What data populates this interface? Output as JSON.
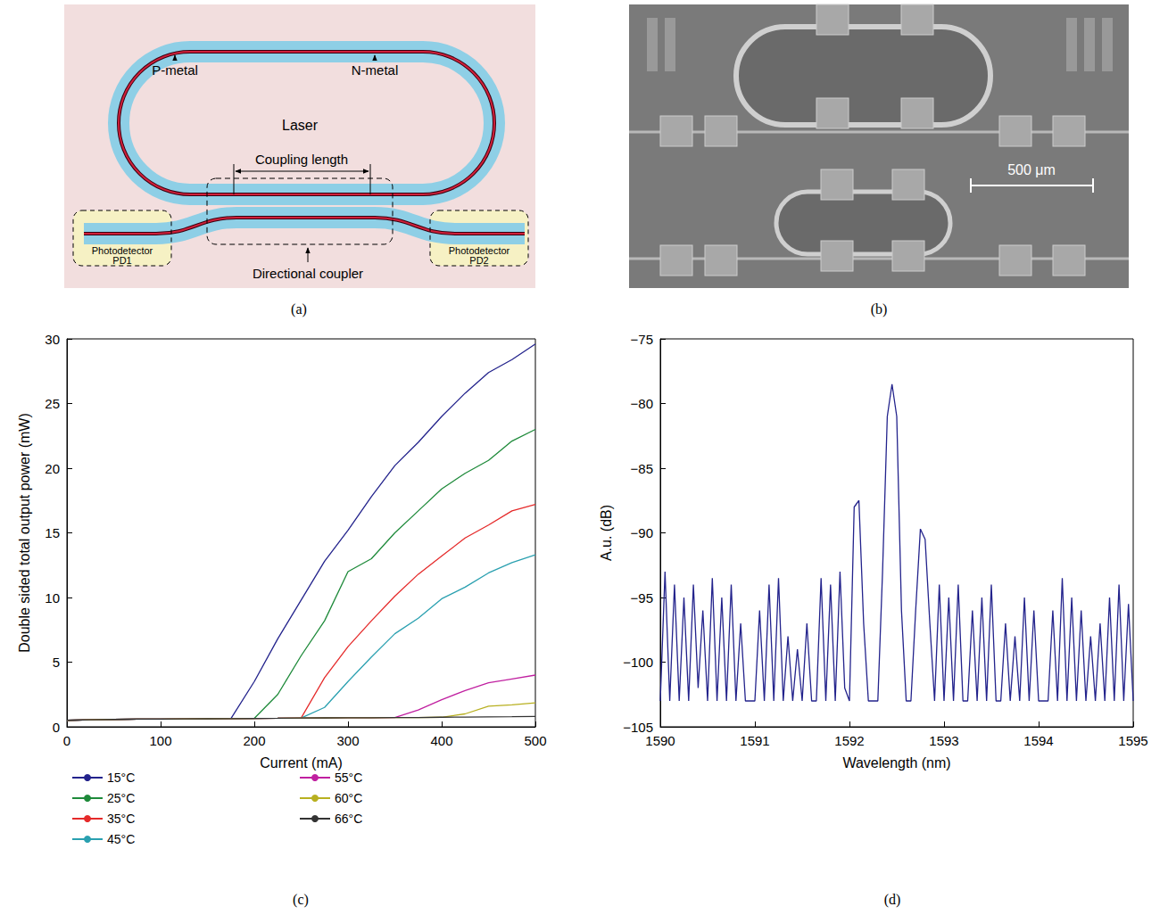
{
  "panels": [
    "(a)",
    "(b)",
    "(c)",
    "(d)"
  ],
  "diagram": {
    "p_metal": "P-metal",
    "n_metal": "N-metal",
    "laser": "Laser",
    "coupling_length": "Coupling length",
    "directional_coupler": "Directional coupler",
    "photodetectors": [
      [
        "Photodetector",
        "PD1"
      ],
      [
        "Photodetector",
        "PD2"
      ]
    ]
  },
  "image": {
    "scale_bar": "500 μm"
  },
  "chart_data": [
    {
      "type": "line",
      "xlabel": "Current (mA)",
      "ylabel": "Double sided total output power (mW)",
      "x": [
        0,
        25,
        50,
        75,
        100,
        125,
        150,
        175,
        200,
        225,
        250,
        275,
        300,
        325,
        350,
        375,
        400,
        425,
        450,
        475,
        500
      ],
      "xlim": [
        0,
        500
      ],
      "xticks": [
        0,
        100,
        200,
        300,
        400,
        500
      ],
      "ylim": [
        0,
        30
      ],
      "yticks": [
        0,
        5,
        10,
        15,
        20,
        25,
        30
      ],
      "grid": false,
      "legend": "bottom",
      "line_style": "solid",
      "series": [
        {
          "name": "15°C",
          "color": "#23238c",
          "values": [
            0.5,
            0.55,
            0.57,
            0.59,
            0.6,
            0.61,
            0.62,
            0.63,
            3.5,
            6.8,
            9.8,
            12.8,
            15.2,
            17.8,
            20.2,
            22,
            24,
            25.8,
            27.4,
            28.4,
            29.6
          ]
        },
        {
          "name": "25°C",
          "color": "#1e8a3a",
          "values": [
            0.5,
            0.55,
            0.57,
            0.59,
            0.6,
            0.61,
            0.62,
            0.63,
            0.65,
            2.5,
            5.5,
            8.2,
            12,
            13,
            15,
            16.7,
            18.4,
            19.6,
            20.6,
            22.1,
            23
          ]
        },
        {
          "name": "35°C",
          "color": "#e52a2a",
          "values": [
            0.5,
            0.55,
            0.57,
            0.59,
            0.6,
            0.61,
            0.62,
            0.63,
            0.65,
            0.66,
            0.68,
            3.8,
            6.2,
            8.2,
            10.1,
            11.8,
            13.2,
            14.6,
            15.6,
            16.7,
            17.2
          ]
        },
        {
          "name": "45°C",
          "color": "#2aa0b0",
          "values": [
            0.5,
            0.55,
            0.57,
            0.59,
            0.6,
            0.61,
            0.62,
            0.63,
            0.65,
            0.66,
            0.68,
            1.5,
            3.5,
            5.4,
            7.2,
            8.4,
            9.9,
            10.8,
            11.9,
            12.7,
            13.3
          ]
        },
        {
          "name": "55°C",
          "color": "#c020a0",
          "values": [
            0.5,
            0.55,
            0.57,
            0.59,
            0.6,
            0.61,
            0.62,
            0.63,
            0.65,
            0.66,
            0.68,
            0.69,
            0.7,
            0.7,
            0.71,
            1.3,
            2.1,
            2.8,
            3.4,
            3.7,
            4.0
          ]
        },
        {
          "name": "60°C",
          "color": "#b8b020",
          "values": [
            0.5,
            0.55,
            0.57,
            0.59,
            0.6,
            0.61,
            0.62,
            0.63,
            0.65,
            0.66,
            0.68,
            0.69,
            0.7,
            0.7,
            0.71,
            0.72,
            0.74,
            1.0,
            1.6,
            1.7,
            1.85
          ]
        },
        {
          "name": "66°C",
          "color": "#333333",
          "values": [
            0.5,
            0.55,
            0.57,
            0.59,
            0.6,
            0.61,
            0.62,
            0.63,
            0.65,
            0.66,
            0.68,
            0.69,
            0.7,
            0.7,
            0.71,
            0.72,
            0.74,
            0.75,
            0.77,
            0.78,
            0.8
          ]
        }
      ]
    },
    {
      "type": "line",
      "xlabel": "Wavelength (nm)",
      "ylabel": "A.u. (dB)",
      "x": [
        1590,
        1590.05,
        1590.1,
        1590.15,
        1590.2,
        1590.25,
        1590.3,
        1590.35,
        1590.4,
        1590.45,
        1590.5,
        1590.55,
        1590.6,
        1590.65,
        1590.7,
        1590.75,
        1590.8,
        1590.85,
        1590.9,
        1590.95,
        1591,
        1591.05,
        1591.1,
        1591.15,
        1591.2,
        1591.25,
        1591.3,
        1591.35,
        1591.4,
        1591.45,
        1591.5,
        1591.55,
        1591.6,
        1591.65,
        1591.7,
        1591.75,
        1591.8,
        1591.85,
        1591.9,
        1591.95,
        1592,
        1592.05,
        1592.1,
        1592.15,
        1592.2,
        1592.25,
        1592.3,
        1592.35,
        1592.4,
        1592.45,
        1592.5,
        1592.55,
        1592.6,
        1592.65,
        1592.7,
        1592.75,
        1592.8,
        1592.85,
        1592.9,
        1592.95,
        1593,
        1593.05,
        1593.1,
        1593.15,
        1593.2,
        1593.25,
        1593.3,
        1593.35,
        1593.4,
        1593.45,
        1593.5,
        1593.55,
        1593.6,
        1593.65,
        1593.7,
        1593.75,
        1593.8,
        1593.85,
        1593.9,
        1593.95,
        1594,
        1594.05,
        1594.1,
        1594.15,
        1594.2,
        1594.25,
        1594.3,
        1594.35,
        1594.4,
        1594.45,
        1594.5,
        1594.55,
        1594.6,
        1594.65,
        1594.7,
        1594.75,
        1594.8,
        1594.85,
        1594.9,
        1594.95,
        1595
      ],
      "values": [
        -103,
        -93,
        -103,
        -94,
        -103,
        -95,
        -103,
        -94,
        -102,
        -96,
        -103,
        -93.5,
        -103,
        -95,
        -103,
        -94,
        -103,
        -97,
        -103,
        -103,
        -103,
        -96,
        -103,
        -94,
        -103,
        -93.5,
        -103,
        -98,
        -103,
        -99,
        -103,
        -97,
        -103,
        -103,
        -93.5,
        -103,
        -94,
        -103,
        -93,
        -102,
        -103,
        -88,
        -87.5,
        -97,
        -103,
        -103,
        -103,
        -93,
        -81,
        -78.5,
        -81,
        -96,
        -103,
        -103,
        -96,
        -89.7,
        -90.5,
        -97,
        -103,
        -94,
        -103,
        -95,
        -103,
        -94,
        -103,
        -103,
        -96,
        -103,
        -95,
        -103,
        -94,
        -103,
        -103,
        -97,
        -103,
        -98,
        -103,
        -95,
        -103,
        -96,
        -103,
        -103,
        -103,
        -96,
        -103,
        -93.5,
        -103,
        -95,
        -103,
        -96,
        -103,
        -98,
        -103,
        -97,
        -103,
        -95,
        -103,
        -94,
        -103,
        -95.5,
        -103
      ],
      "color": "#23238c",
      "xlim": [
        1590,
        1595
      ],
      "xticks": [
        1590,
        1591,
        1592,
        1593,
        1594,
        1595
      ],
      "ylim": [
        -105,
        -75
      ],
      "yticks": [
        {
          "value": -105,
          "label": "−105"
        },
        {
          "value": -100,
          "label": "−100"
        },
        {
          "value": -95,
          "label": "−95"
        },
        {
          "value": -90,
          "label": "−90"
        },
        {
          "value": -85,
          "label": "−85"
        },
        {
          "value": -80,
          "label": "−80"
        },
        {
          "value": -75,
          "label": "−75"
        }
      ],
      "grid": false,
      "line_style": "solid"
    }
  ]
}
